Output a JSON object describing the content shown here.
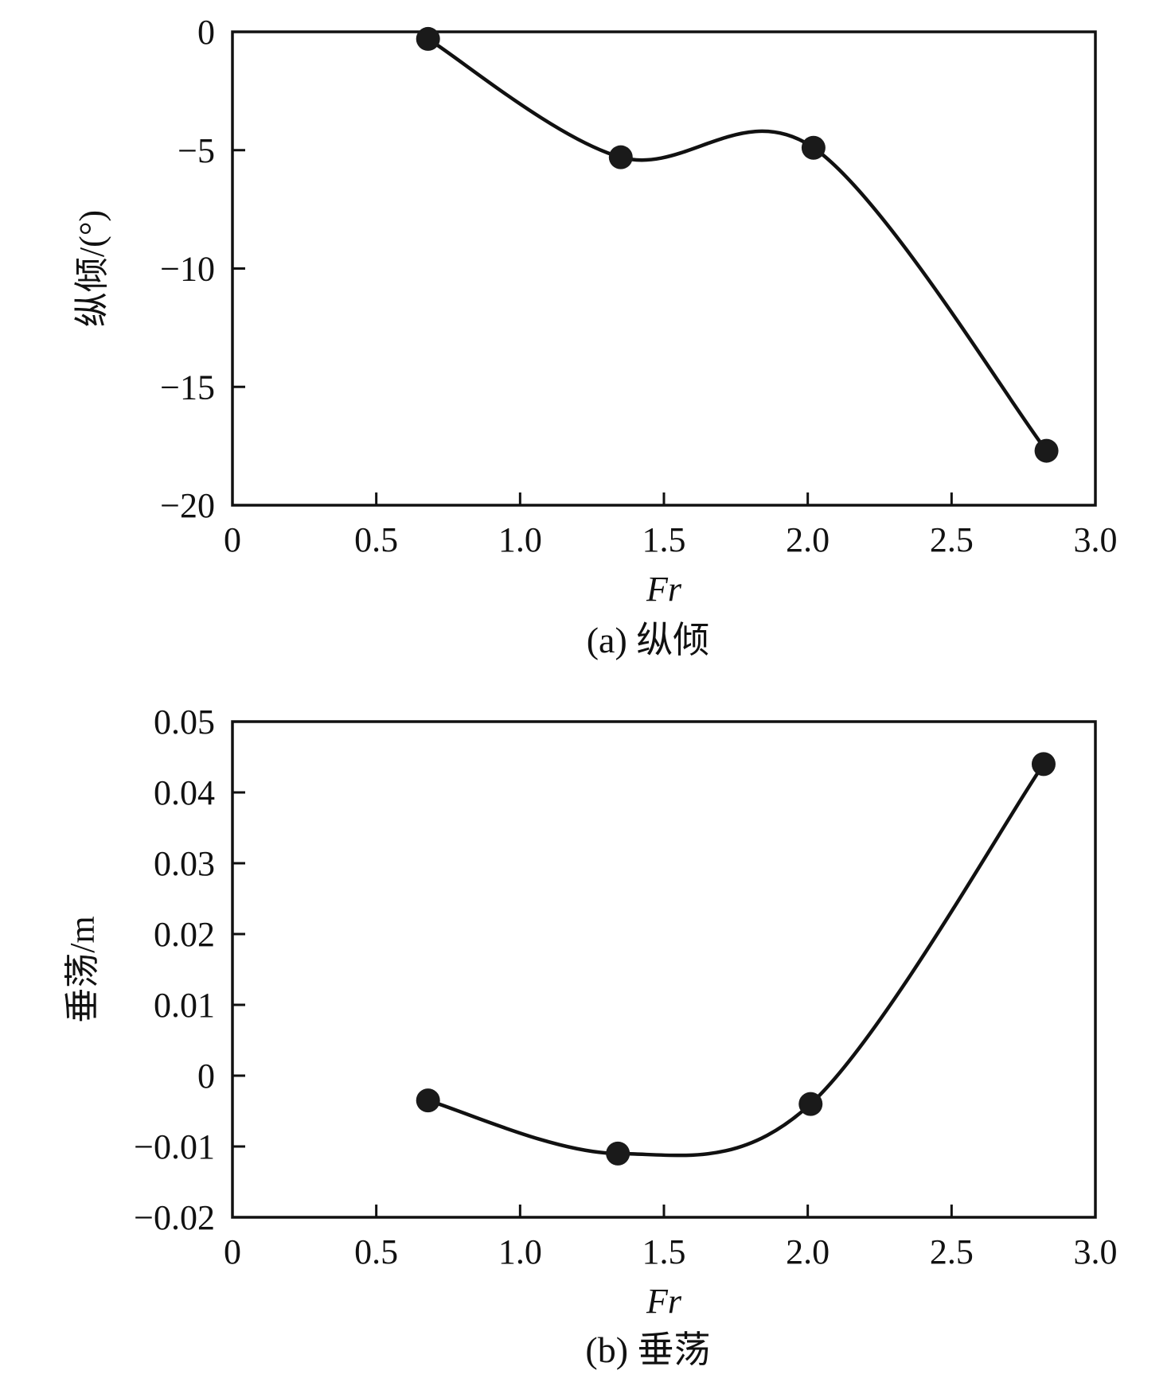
{
  "chart_data": [
    {
      "type": "line",
      "caption": "(a) 纵倾",
      "xlabel": "Fr",
      "ylabel": "纵倾/(°)",
      "xlim": [
        0,
        3.0
      ],
      "ylim": [
        -20,
        0
      ],
      "xticks": [
        0,
        0.5,
        1.0,
        1.5,
        2.0,
        2.5,
        3.0
      ],
      "xtick_labels": [
        "0",
        "0.5",
        "1.0",
        "1.5",
        "2.0",
        "2.5",
        "3.0"
      ],
      "yticks": [
        0,
        -5,
        -10,
        -15,
        -20
      ],
      "ytick_labels": [
        "0",
        "−5",
        "−10",
        "−15",
        "−20"
      ],
      "grid": false,
      "series": [
        {
          "x": [
            0.68,
            1.35,
            2.02,
            2.83
          ],
          "y": [
            -0.3,
            -5.3,
            -4.9,
            -17.7
          ],
          "smooth": true,
          "marker": "circle"
        }
      ]
    },
    {
      "type": "line",
      "caption": "(b) 垂荡",
      "xlabel": "Fr",
      "ylabel": "垂荡/m",
      "xlim": [
        0,
        3.0
      ],
      "ylim": [
        -0.02,
        0.05
      ],
      "xticks": [
        0,
        0.5,
        1.0,
        1.5,
        2.0,
        2.5,
        3.0
      ],
      "xtick_labels": [
        "0",
        "0.5",
        "1.0",
        "1.5",
        "2.0",
        "2.5",
        "3.0"
      ],
      "yticks": [
        0.05,
        0.04,
        0.03,
        0.02,
        0.01,
        0,
        -0.01,
        -0.02
      ],
      "ytick_labels": [
        "0.05",
        "0.04",
        "0.03",
        "0.02",
        "0.01",
        "0",
        "−0.01",
        "−0.02"
      ],
      "grid": false,
      "series": [
        {
          "x": [
            0.68,
            1.34,
            2.01,
            2.82
          ],
          "y": [
            -0.0035,
            -0.011,
            -0.004,
            0.044
          ],
          "smooth": true,
          "marker": "circle"
        }
      ]
    }
  ]
}
